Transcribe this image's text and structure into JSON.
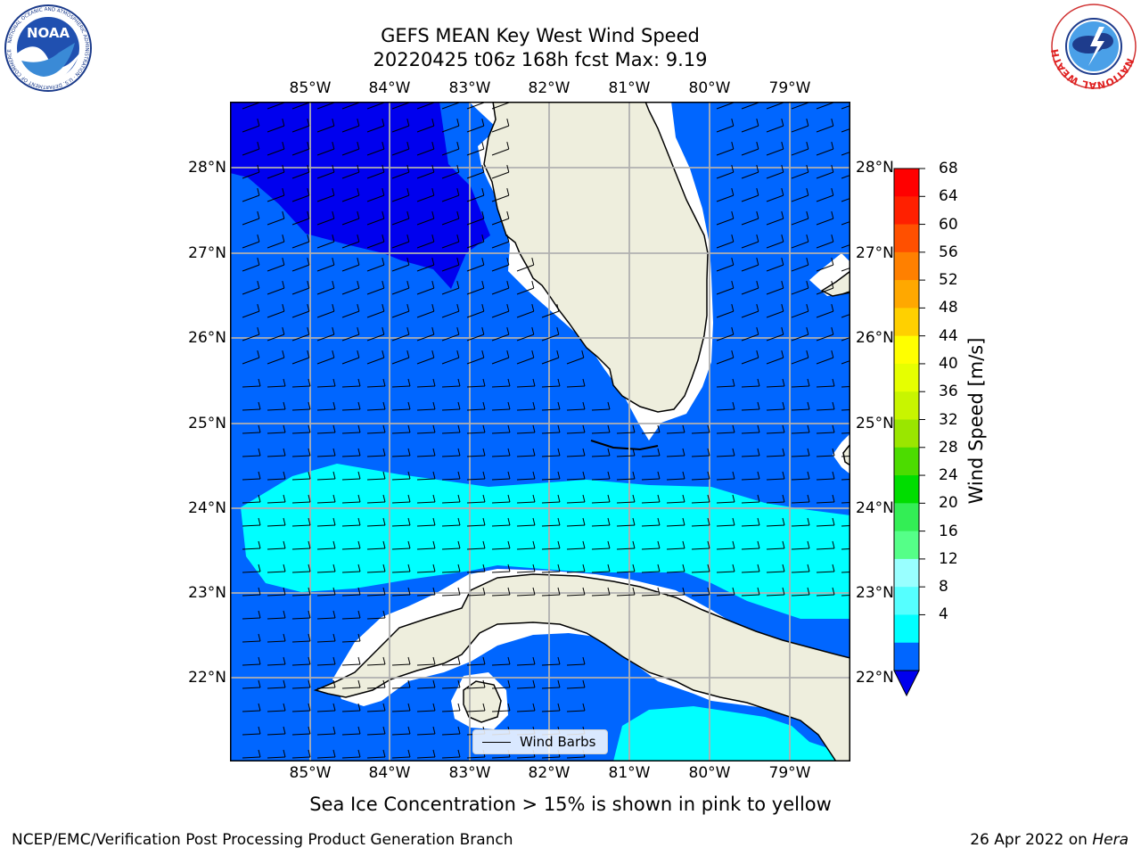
{
  "title": {
    "line1": "GEFS MEAN Key West Wind Speed",
    "line2": "20220425 t06z 168h fcst   Max: 9.19"
  },
  "logos": {
    "noaa_text": "NOAA",
    "noaa_ring": "NATIONAL OCEANIC AND ATMOSPHERIC ADMINISTRATION · U.S. DEPARTMENT OF COMMERCE",
    "nws_ring": "NATIONAL WEATHER SERVICE"
  },
  "map": {
    "lon_range": [
      -86,
      -78.3
    ],
    "lat_range": [
      21.0,
      28.8
    ],
    "lon_ticks": [
      "85°W",
      "84°W",
      "83°W",
      "82°W",
      "81°W",
      "80°W",
      "79°W"
    ],
    "lat_ticks": [
      "28°N",
      "27°N",
      "26°N",
      "25°N",
      "24°N",
      "23°N",
      "22°N"
    ],
    "gridlines": true,
    "colors": {
      "band_4_8": "#0066ff",
      "band_below_4": "#0000ee",
      "band_8_12": "#00ffff",
      "land": "#eeeedd",
      "coast": "#000000"
    }
  },
  "legend": {
    "label": "Wind Barbs",
    "position": "lower-center"
  },
  "colorbar": {
    "title": "Wind Speed [m/s]",
    "labels": [
      "68",
      "64",
      "60",
      "56",
      "52",
      "48",
      "44",
      "40",
      "36",
      "32",
      "28",
      "24",
      "20",
      "16",
      "12",
      "8",
      "4"
    ],
    "colors": [
      "#ff0000",
      "#ff2000",
      "#ff5000",
      "#ff8000",
      "#ffa800",
      "#ffd000",
      "#ffff00",
      "#e6ff00",
      "#c8f500",
      "#9ae600",
      "#4cdc00",
      "#00dd00",
      "#33ee55",
      "#55ff88",
      "#99ffff",
      "#55ffff",
      "#00ffff",
      "#0066ff"
    ],
    "extend_color": "#0000ee"
  },
  "note": "Sea Ice Concentration > 15% is shown in pink to yellow",
  "footer": {
    "left": "NCEP/EMC/Verification Post Processing Product Generation Branch",
    "right_date": "26 Apr 2022 on ",
    "right_host": "Hera"
  }
}
